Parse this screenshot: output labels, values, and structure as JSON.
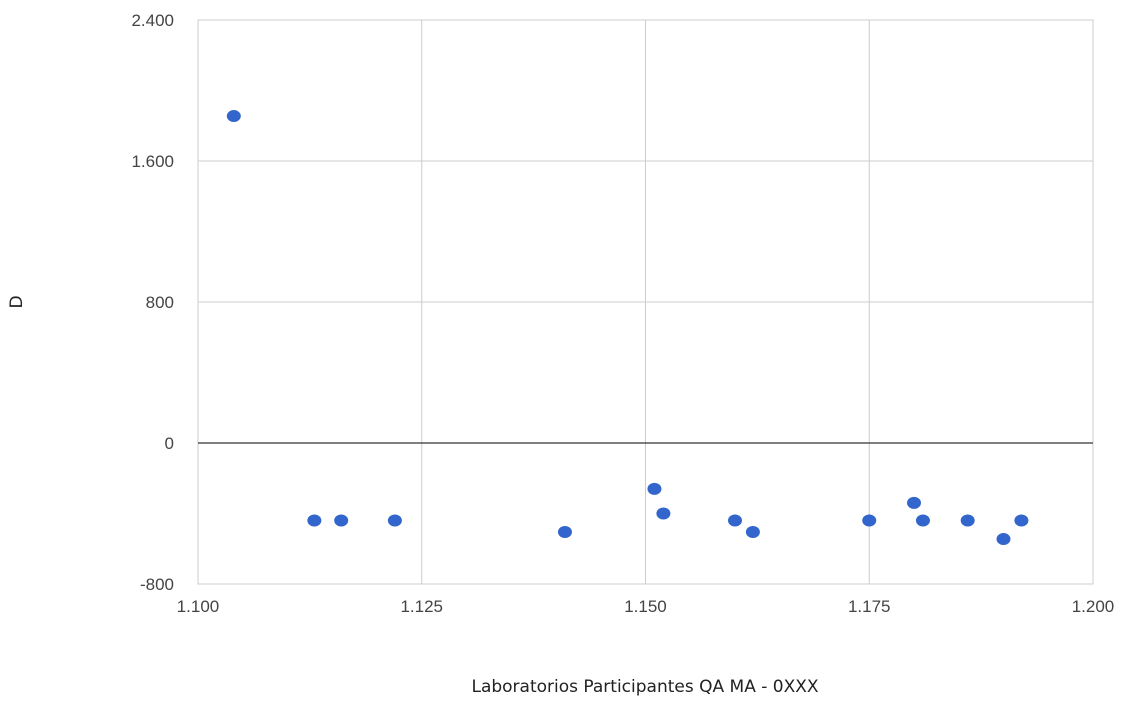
{
  "chart_data": {
    "type": "scatter",
    "title": "",
    "xlabel": "Laboratorios Participantes QA MA - 0XXX",
    "ylabel": "D",
    "xlim": [
      1.1,
      1.2
    ],
    "ylim": [
      -800,
      2400
    ],
    "x_ticks": [
      1.1,
      1.125,
      1.15,
      1.175,
      1.2
    ],
    "x_tick_labels": [
      "1.100",
      "1.125",
      "1.150",
      "1.175",
      "1.200"
    ],
    "y_ticks": [
      -800,
      0,
      800,
      1600,
      2400
    ],
    "y_tick_labels": [
      "-800",
      "0",
      "800",
      "1.600",
      "2.400"
    ],
    "grid": true,
    "point_color": "#3366cc",
    "series": [
      {
        "points": [
          {
            "x": 1.104,
            "y": 1855
          },
          {
            "x": 1.113,
            "y": -440
          },
          {
            "x": 1.116,
            "y": -440
          },
          {
            "x": 1.122,
            "y": -440
          },
          {
            "x": 1.141,
            "y": -505
          },
          {
            "x": 1.151,
            "y": -260
          },
          {
            "x": 1.152,
            "y": -400
          },
          {
            "x": 1.16,
            "y": -440
          },
          {
            "x": 1.162,
            "y": -505
          },
          {
            "x": 1.175,
            "y": -440
          },
          {
            "x": 1.18,
            "y": -340
          },
          {
            "x": 1.181,
            "y": -440
          },
          {
            "x": 1.186,
            "y": -440
          },
          {
            "x": 1.19,
            "y": -545
          },
          {
            "x": 1.192,
            "y": -440
          }
        ]
      }
    ]
  }
}
